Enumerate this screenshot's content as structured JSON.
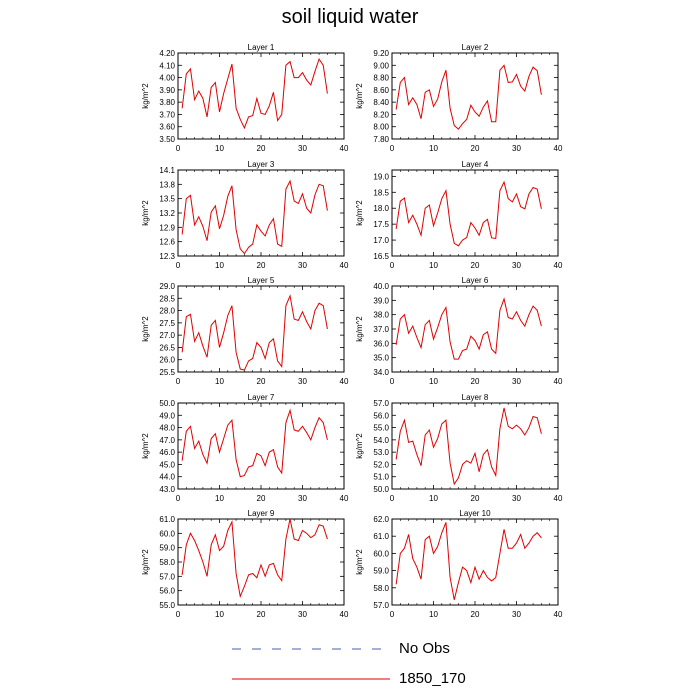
{
  "title": "soil liquid water",
  "legend": {
    "entries": [
      {
        "label": "No Obs",
        "color": "#4b5bb0",
        "style": "dashed"
      },
      {
        "label": "1850_170",
        "color": "#e00000",
        "style": "solid"
      }
    ]
  },
  "chart_data": [
    {
      "type": "line",
      "title": "Layer 1",
      "ylabel": "kg/m^2",
      "xlim": [
        0,
        40
      ],
      "ylim": [
        3.5,
        4.2
      ],
      "xticks": [
        0,
        10,
        20,
        30,
        40
      ],
      "yticks": [
        "3.50",
        "3.60",
        "3.70",
        "3.80",
        "3.90",
        "4.00",
        "4.10",
        "4.20"
      ],
      "series": [
        {
          "name": "1850_170",
          "color": "#e00000",
          "x": [
            1,
            2,
            3,
            4,
            5,
            6,
            7,
            8,
            9,
            10,
            11,
            12,
            13,
            14,
            15,
            16,
            17,
            18,
            19,
            20,
            21,
            22,
            23,
            24,
            25,
            26,
            27,
            28,
            29,
            30,
            31,
            32,
            33,
            34,
            35,
            36
          ],
          "y": [
            3.75,
            4.03,
            4.07,
            3.82,
            3.89,
            3.83,
            3.68,
            3.92,
            3.96,
            3.72,
            3.87,
            3.99,
            4.11,
            3.75,
            3.66,
            3.59,
            3.68,
            3.69,
            3.83,
            3.71,
            3.7,
            3.77,
            3.88,
            3.65,
            3.7,
            4.1,
            4.13,
            4.0,
            4.0,
            4.04,
            3.98,
            3.94,
            4.05,
            4.15,
            4.1,
            3.87
          ]
        }
      ]
    },
    {
      "type": "line",
      "title": "Layer 2",
      "ylabel": "kg/m^2",
      "xlim": [
        0,
        40
      ],
      "ylim": [
        7.8,
        9.2
      ],
      "xticks": [
        0,
        10,
        20,
        30,
        40
      ],
      "yticks": [
        "7.80",
        "8.00",
        "8.20",
        "8.40",
        "8.60",
        "8.80",
        "9.00",
        "9.20"
      ],
      "series": [
        {
          "name": "1850_170",
          "color": "#e00000",
          "x": [
            1,
            2,
            3,
            4,
            5,
            6,
            7,
            8,
            9,
            10,
            11,
            12,
            13,
            14,
            15,
            16,
            17,
            18,
            19,
            20,
            21,
            22,
            23,
            24,
            25,
            26,
            27,
            28,
            29,
            30,
            31,
            32,
            33,
            34,
            35,
            36
          ],
          "y": [
            8.28,
            8.72,
            8.8,
            8.36,
            8.47,
            8.36,
            8.13,
            8.56,
            8.6,
            8.33,
            8.45,
            8.73,
            8.92,
            8.3,
            8.02,
            7.96,
            8.05,
            8.12,
            8.35,
            8.24,
            8.17,
            8.32,
            8.42,
            8.08,
            8.08,
            8.92,
            9.0,
            8.72,
            8.73,
            8.85,
            8.66,
            8.58,
            8.82,
            8.97,
            8.91,
            8.52
          ]
        }
      ]
    },
    {
      "type": "line",
      "title": "Layer 3",
      "ylabel": "kg/m^2",
      "xlim": [
        0,
        40
      ],
      "ylim": [
        12.3,
        14.1
      ],
      "xticks": [
        0,
        10,
        20,
        30,
        40
      ],
      "yticks": [
        "12.3",
        "12.6",
        "12.9",
        "13.2",
        "13.5",
        "13.8",
        "14.1"
      ],
      "series": [
        {
          "name": "1850_170",
          "color": "#e00000",
          "x": [
            1,
            2,
            3,
            4,
            5,
            6,
            7,
            8,
            9,
            10,
            11,
            12,
            13,
            14,
            15,
            16,
            17,
            18,
            19,
            20,
            21,
            22,
            23,
            24,
            25,
            26,
            27,
            28,
            29,
            30,
            31,
            32,
            33,
            34,
            35,
            36
          ],
          "y": [
            12.75,
            13.5,
            13.57,
            12.95,
            13.12,
            12.92,
            12.62,
            13.22,
            13.35,
            12.87,
            13.15,
            13.55,
            13.77,
            12.85,
            12.45,
            12.35,
            12.48,
            12.55,
            12.95,
            12.82,
            12.72,
            12.95,
            13.08,
            12.55,
            12.5,
            13.7,
            13.87,
            13.45,
            13.4,
            13.6,
            13.3,
            13.2,
            13.58,
            13.8,
            13.77,
            13.25
          ]
        }
      ]
    },
    {
      "type": "line",
      "title": "Layer 4",
      "ylabel": "kg/m^2",
      "xlim": [
        0,
        40
      ],
      "ylim": [
        16.5,
        19.2
      ],
      "xticks": [
        0,
        10,
        20,
        30,
        40
      ],
      "yticks": [
        "16.5",
        "17.0",
        "17.5",
        "18.0",
        "18.5",
        "19.0"
      ],
      "series": [
        {
          "name": "1850_170",
          "color": "#e00000",
          "x": [
            1,
            2,
            3,
            4,
            5,
            6,
            7,
            8,
            9,
            10,
            11,
            12,
            13,
            14,
            15,
            16,
            17,
            18,
            19,
            20,
            21,
            22,
            23,
            24,
            25,
            26,
            27,
            28,
            29,
            30,
            31,
            32,
            33,
            34,
            35,
            36
          ],
          "y": [
            17.35,
            18.22,
            18.32,
            17.55,
            17.78,
            17.5,
            17.15,
            18.0,
            18.1,
            17.45,
            17.85,
            18.3,
            18.55,
            17.5,
            16.9,
            16.82,
            17.0,
            17.08,
            17.55,
            17.38,
            17.15,
            17.55,
            17.65,
            17.07,
            17.05,
            18.55,
            18.82,
            18.3,
            18.2,
            18.45,
            18.05,
            17.98,
            18.45,
            18.65,
            18.6,
            17.98
          ]
        }
      ]
    },
    {
      "type": "line",
      "title": "Layer 5",
      "ylabel": "kg/m^2",
      "xlim": [
        0,
        40
      ],
      "ylim": [
        25.5,
        29.0
      ],
      "xticks": [
        0,
        10,
        20,
        30,
        40
      ],
      "yticks": [
        "25.5",
        "26.0",
        "26.5",
        "27.0",
        "27.5",
        "28.0",
        "28.5",
        "29.0"
      ],
      "series": [
        {
          "name": "1850_170",
          "color": "#e00000",
          "x": [
            1,
            2,
            3,
            4,
            5,
            6,
            7,
            8,
            9,
            10,
            11,
            12,
            13,
            14,
            15,
            16,
            17,
            18,
            19,
            20,
            21,
            22,
            23,
            24,
            25,
            26,
            27,
            28,
            29,
            30,
            31,
            32,
            33,
            34,
            35,
            36
          ],
          "y": [
            26.3,
            27.75,
            27.85,
            26.75,
            27.1,
            26.55,
            26.1,
            27.4,
            27.6,
            26.5,
            27.1,
            27.8,
            28.2,
            26.3,
            25.62,
            25.58,
            25.95,
            26.05,
            26.7,
            26.5,
            26.05,
            26.7,
            26.85,
            25.95,
            25.72,
            28.2,
            28.6,
            27.65,
            27.6,
            27.95,
            27.55,
            27.25,
            28.0,
            28.3,
            28.2,
            27.25
          ]
        }
      ]
    },
    {
      "type": "line",
      "title": "Layer 6",
      "ylabel": "kg/m^2",
      "xlim": [
        0,
        40
      ],
      "ylim": [
        34.0,
        40.0
      ],
      "xticks": [
        0,
        10,
        20,
        30,
        40
      ],
      "yticks": [
        "34.0",
        "35.0",
        "36.0",
        "37.0",
        "38.0",
        "39.0",
        "40.0"
      ],
      "series": [
        {
          "name": "1850_170",
          "color": "#e00000",
          "x": [
            1,
            2,
            3,
            4,
            5,
            6,
            7,
            8,
            9,
            10,
            11,
            12,
            13,
            14,
            15,
            16,
            17,
            18,
            19,
            20,
            21,
            22,
            23,
            24,
            25,
            26,
            27,
            28,
            29,
            30,
            31,
            32,
            33,
            34,
            35,
            36
          ],
          "y": [
            35.9,
            37.7,
            38.0,
            36.7,
            37.2,
            36.4,
            35.7,
            37.3,
            37.6,
            36.3,
            37.1,
            38.0,
            38.5,
            36.1,
            34.9,
            34.9,
            35.5,
            35.6,
            36.5,
            36.2,
            35.6,
            36.6,
            36.8,
            35.6,
            35.3,
            38.3,
            39.1,
            37.8,
            37.7,
            38.2,
            37.6,
            37.2,
            38.0,
            38.6,
            38.3,
            37.2
          ]
        }
      ]
    },
    {
      "type": "line",
      "title": "Layer 7",
      "ylabel": "kg/m^2",
      "xlim": [
        0,
        40
      ],
      "ylim": [
        43.0,
        50.0
      ],
      "xticks": [
        0,
        10,
        20,
        30,
        40
      ],
      "yticks": [
        "43.0",
        "44.0",
        "45.0",
        "46.0",
        "47.0",
        "48.0",
        "49.0",
        "50.0"
      ],
      "series": [
        {
          "name": "1850_170",
          "color": "#e00000",
          "x": [
            1,
            2,
            3,
            4,
            5,
            6,
            7,
            8,
            9,
            10,
            11,
            12,
            13,
            14,
            15,
            16,
            17,
            18,
            19,
            20,
            21,
            22,
            23,
            24,
            25,
            26,
            27,
            28,
            29,
            30,
            31,
            32,
            33,
            34,
            35,
            36
          ],
          "y": [
            45.3,
            47.7,
            48.1,
            46.3,
            46.9,
            45.8,
            45.1,
            47.1,
            47.5,
            46.0,
            47.1,
            48.2,
            48.6,
            45.4,
            44.0,
            44.1,
            44.8,
            44.9,
            45.9,
            45.7,
            44.9,
            46.0,
            46.2,
            44.8,
            44.3,
            48.4,
            49.4,
            47.8,
            47.7,
            48.1,
            47.6,
            47.0,
            48.0,
            48.8,
            48.4,
            47.0
          ]
        }
      ]
    },
    {
      "type": "line",
      "title": "Layer 8",
      "ylabel": "kg/m^2",
      "xlim": [
        0,
        40
      ],
      "ylim": [
        50.0,
        57.0
      ],
      "xticks": [
        0,
        10,
        20,
        30,
        40
      ],
      "yticks": [
        "50.0",
        "51.0",
        "52.0",
        "53.0",
        "54.0",
        "55.0",
        "56.0",
        "57.0"
      ],
      "series": [
        {
          "name": "1850_170",
          "color": "#e00000",
          "x": [
            1,
            2,
            3,
            4,
            5,
            6,
            7,
            8,
            9,
            10,
            11,
            12,
            13,
            14,
            15,
            16,
            17,
            18,
            19,
            20,
            21,
            22,
            23,
            24,
            25,
            26,
            27,
            28,
            29,
            30,
            31,
            32,
            33,
            34,
            35,
            36
          ],
          "y": [
            52.4,
            54.7,
            55.6,
            53.8,
            53.9,
            52.8,
            51.9,
            54.4,
            54.8,
            53.4,
            54.1,
            55.3,
            55.6,
            52.1,
            50.4,
            50.9,
            52.0,
            52.3,
            52.1,
            52.9,
            51.4,
            52.8,
            53.2,
            51.8,
            51.1,
            54.9,
            56.6,
            55.1,
            54.9,
            55.2,
            54.9,
            54.4,
            55.0,
            55.9,
            55.8,
            54.5
          ]
        }
      ]
    },
    {
      "type": "line",
      "title": "Layer 9",
      "ylabel": "kg/m^2",
      "xlim": [
        0,
        40
      ],
      "ylim": [
        55.0,
        61.0
      ],
      "xticks": [
        0,
        10,
        20,
        30,
        40
      ],
      "yticks": [
        "55.0",
        "56.0",
        "57.0",
        "58.0",
        "59.0",
        "60.0",
        "61.0"
      ],
      "series": [
        {
          "name": "1850_170",
          "color": "#e00000",
          "x": [
            1,
            2,
            3,
            4,
            5,
            6,
            7,
            8,
            9,
            10,
            11,
            12,
            13,
            14,
            15,
            16,
            17,
            18,
            19,
            20,
            21,
            22,
            23,
            24,
            25,
            26,
            27,
            28,
            29,
            30,
            31,
            32,
            33,
            34,
            35,
            36
          ],
          "y": [
            57.1,
            59.2,
            60.0,
            59.5,
            58.8,
            58.0,
            57.0,
            59.2,
            59.9,
            58.8,
            59.1,
            60.2,
            60.8,
            57.2,
            55.6,
            56.3,
            57.1,
            57.2,
            56.9,
            57.8,
            57.0,
            57.8,
            57.9,
            57.1,
            56.7,
            59.6,
            61.0,
            59.6,
            59.5,
            60.2,
            60.0,
            59.7,
            59.9,
            60.6,
            60.5,
            59.6
          ]
        }
      ]
    },
    {
      "type": "line",
      "title": "Layer 10",
      "ylabel": "kg/m^2",
      "xlim": [
        0,
        40
      ],
      "ylim": [
        57.0,
        62.0
      ],
      "xticks": [
        0,
        10,
        20,
        30,
        40
      ],
      "yticks": [
        "57.0",
        "58.0",
        "59.0",
        "60.0",
        "61.0",
        "62.0"
      ],
      "series": [
        {
          "name": "1850_170",
          "color": "#e00000",
          "x": [
            1,
            2,
            3,
            4,
            5,
            6,
            7,
            8,
            9,
            10,
            11,
            12,
            13,
            14,
            15,
            16,
            17,
            18,
            19,
            20,
            21,
            22,
            23,
            24,
            25,
            26,
            27,
            28,
            29,
            30,
            31,
            32,
            33,
            34,
            35,
            36
          ],
          "y": [
            58.2,
            60.0,
            60.3,
            61.1,
            59.7,
            59.2,
            58.5,
            60.8,
            61.0,
            60.0,
            60.4,
            61.2,
            61.8,
            58.6,
            57.3,
            58.3,
            59.2,
            59.0,
            58.3,
            59.2,
            58.5,
            59.0,
            58.6,
            58.4,
            58.6,
            60.0,
            61.4,
            60.3,
            60.3,
            60.6,
            61.1,
            60.3,
            60.6,
            61.0,
            61.2,
            60.9
          ]
        }
      ]
    }
  ]
}
